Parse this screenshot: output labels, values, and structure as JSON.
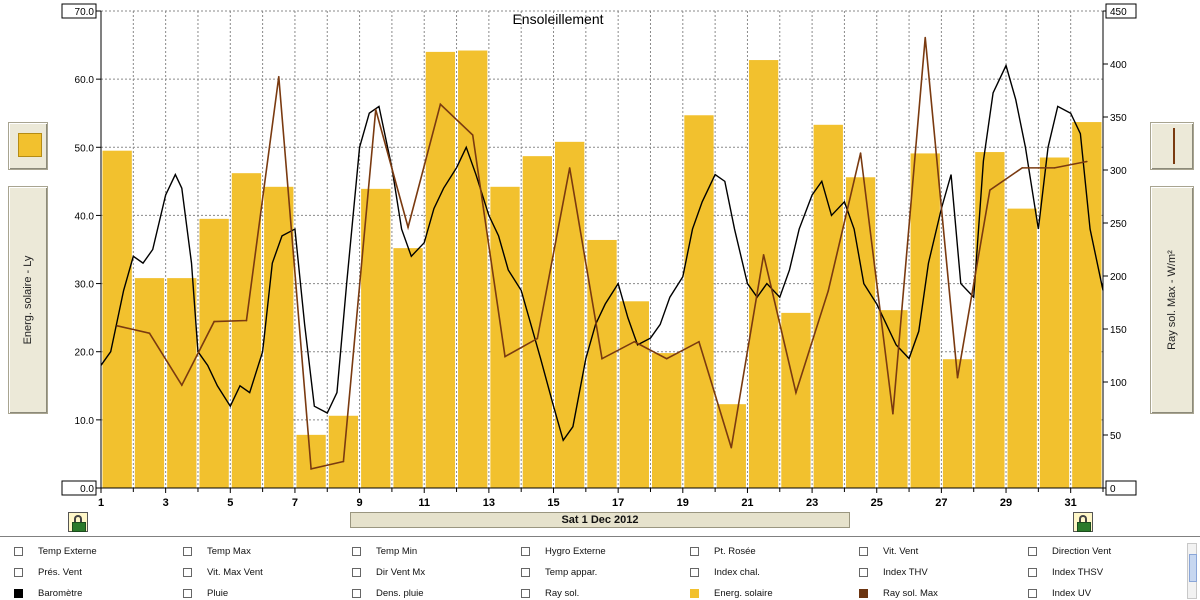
{
  "chart_data": {
    "type": "bar",
    "title": "Ensoleillement",
    "x": [
      1,
      2,
      3,
      4,
      5,
      6,
      7,
      8,
      9,
      10,
      11,
      12,
      13,
      14,
      15,
      16,
      17,
      18,
      19,
      20,
      21,
      22,
      23,
      24,
      25,
      26,
      27,
      28,
      29,
      30,
      31
    ],
    "xticks": [
      "1",
      "3",
      "5",
      "7",
      "9",
      "11",
      "13",
      "15",
      "17",
      "19",
      "21",
      "23",
      "25",
      "27",
      "29",
      "31"
    ],
    "ylabel_left": "Energ. solaire - Ly",
    "ylabel_right": "Ray sol. Max - W/m²",
    "ylim_left": [
      0,
      70
    ],
    "ylim_right": [
      0,
      450
    ],
    "yticks_left": [
      "0.0",
      "10.0",
      "20.0",
      "30.0",
      "40.0",
      "50.0",
      "60.0",
      "70.0"
    ],
    "yticks_right": [
      "0",
      "50",
      "100",
      "150",
      "200",
      "250",
      "300",
      "350",
      "400",
      "450"
    ],
    "grid": true,
    "series": [
      {
        "name": "Energ. solaire",
        "type": "bar",
        "axis": "left",
        "color": "#f2c12e",
        "values": [
          49.5,
          30.8,
          30.8,
          39.5,
          46.2,
          44.2,
          7.8,
          10.6,
          43.9,
          35.2,
          64.0,
          64.2,
          44.2,
          48.7,
          50.8,
          36.4,
          27.4,
          19.8,
          54.7,
          12.3,
          62.8,
          25.7,
          53.3,
          45.6,
          26.1,
          49.1,
          18.9,
          49.3,
          41.0,
          48.5,
          53.7
        ]
      },
      {
        "name": "Ray sol. Max",
        "type": "line",
        "axis": "right",
        "color": "#7a3a10",
        "values": [
          153,
          146,
          97,
          157,
          158,
          388,
          18,
          25,
          357,
          246,
          362,
          333,
          124,
          141,
          302,
          122,
          138,
          122,
          138,
          38,
          220,
          90,
          186,
          316,
          70,
          425,
          104,
          281,
          302,
          302,
          308
        ]
      },
      {
        "name": "",
        "type": "line",
        "axis": "left",
        "color": "#000000",
        "x": [
          1,
          1.3,
          1.7,
          2.0,
          2.3,
          2.6,
          3.0,
          3.3,
          3.5,
          3.8,
          4.0,
          4.3,
          4.6,
          5.0,
          5.3,
          5.6,
          6.0,
          6.3,
          6.6,
          7.0,
          7.3,
          7.6,
          8.0,
          8.3,
          8.6,
          9.0,
          9.3,
          9.6,
          10.0,
          10.3,
          10.6,
          11.0,
          11.3,
          11.6,
          12.0,
          12.3,
          12.6,
          13.0,
          13.3,
          13.6,
          14.0,
          14.3,
          14.6,
          15.0,
          15.3,
          15.6,
          16.0,
          16.3,
          16.6,
          17.0,
          17.3,
          17.6,
          18.0,
          18.3,
          18.6,
          19.0,
          19.3,
          19.6,
          20.0,
          20.3,
          20.6,
          21.0,
          21.3,
          21.6,
          22.0,
          22.3,
          22.6,
          23.0,
          23.3,
          23.6,
          24.0,
          24.3,
          24.6,
          25.0,
          25.3,
          25.6,
          26.0,
          26.3,
          26.6,
          27.0,
          27.3,
          27.6,
          28.0,
          28.3,
          28.6,
          29.0,
          29.3,
          29.6,
          30.0,
          30.3,
          30.6,
          31.0,
          31.3,
          31.6,
          32.0
        ],
        "values": [
          18,
          20,
          29,
          34,
          33,
          35,
          43,
          46,
          44,
          33,
          20,
          18,
          15,
          12,
          15,
          14,
          20,
          33,
          37,
          38,
          24,
          12,
          11,
          14,
          30,
          50,
          55,
          56,
          47,
          38,
          34,
          36,
          41,
          44,
          47,
          50,
          46,
          40,
          37,
          32,
          29,
          24,
          19,
          12,
          7,
          9,
          19,
          24,
          27,
          30,
          25,
          21,
          22,
          24,
          28,
          31,
          38,
          42,
          46,
          45,
          38,
          30,
          28,
          30,
          28,
          32,
          38,
          43,
          45,
          40,
          42,
          38,
          30,
          27,
          24,
          21,
          19,
          23,
          33,
          41,
          46,
          30,
          28,
          48,
          58,
          62,
          57,
          50,
          38,
          50,
          56,
          55,
          52,
          38,
          29
        ]
      }
    ]
  },
  "date_bar": "Sat 1 Dec 2012",
  "side_icons": {
    "left": "solar-energy-swatch-icon",
    "right": "solar-max-line-swatch-icon"
  },
  "lock_icons": [
    "lock-icon",
    "lock-icon"
  ],
  "legend": {
    "items": [
      {
        "label": "Temp Externe",
        "checked": false,
        "color": ""
      },
      {
        "label": "Temp Max",
        "checked": false,
        "color": ""
      },
      {
        "label": "Temp Min",
        "checked": false,
        "color": ""
      },
      {
        "label": "Hygro Externe",
        "checked": false,
        "color": ""
      },
      {
        "label": "Pt. Rosée",
        "checked": false,
        "color": ""
      },
      {
        "label": "Vit. Vent",
        "checked": false,
        "color": ""
      },
      {
        "label": "Direction Vent",
        "checked": false,
        "color": ""
      },
      {
        "label": "Prés. Vent",
        "checked": false,
        "color": ""
      },
      {
        "label": "Vit. Max Vent",
        "checked": false,
        "color": ""
      },
      {
        "label": "Dir Vent Mx",
        "checked": false,
        "color": ""
      },
      {
        "label": "Temp appar.",
        "checked": false,
        "color": ""
      },
      {
        "label": "Index chal.",
        "checked": false,
        "color": ""
      },
      {
        "label": "Index THV",
        "checked": false,
        "color": ""
      },
      {
        "label": "Index THSV",
        "checked": false,
        "color": ""
      },
      {
        "label": "Baromètre",
        "checked": true,
        "color": "#000000"
      },
      {
        "label": "Pluie",
        "checked": false,
        "color": ""
      },
      {
        "label": "Dens. pluie",
        "checked": false,
        "color": ""
      },
      {
        "label": "Ray sol.",
        "checked": false,
        "color": ""
      },
      {
        "label": "Energ. solaire",
        "checked": true,
        "color": "#f2c12e"
      },
      {
        "label": "Ray sol. Max",
        "checked": true,
        "color": "#6b3410"
      },
      {
        "label": "Index UV",
        "checked": false,
        "color": ""
      }
    ]
  }
}
